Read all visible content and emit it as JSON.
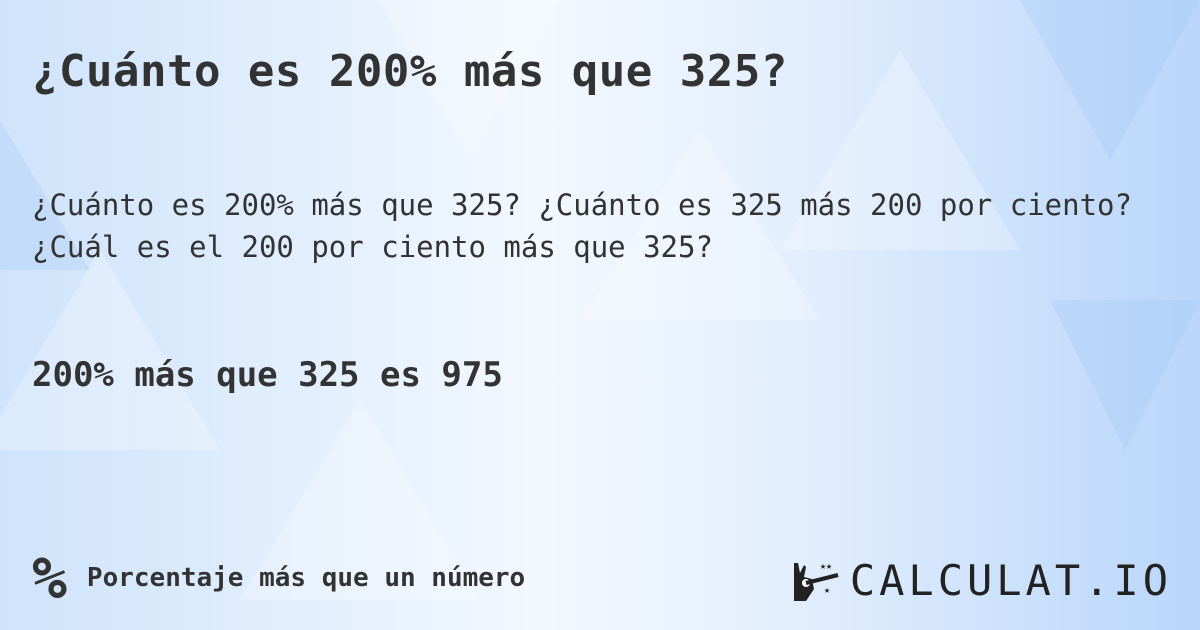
{
  "title": "¿Cuánto es 200% más que 325?",
  "description": "¿Cuánto es 200% más que 325? ¿Cuánto es 325 más 200 por ciento? ¿Cuál es el 200 por ciento más que 325?",
  "answer": "200% más que 325 es 975",
  "footer": {
    "icon": "percent-icon",
    "label": "Porcentaje más que un número"
  },
  "logo": {
    "text": "CALCULAT.IO",
    "icon": "magic-hand-wand-icon"
  }
}
